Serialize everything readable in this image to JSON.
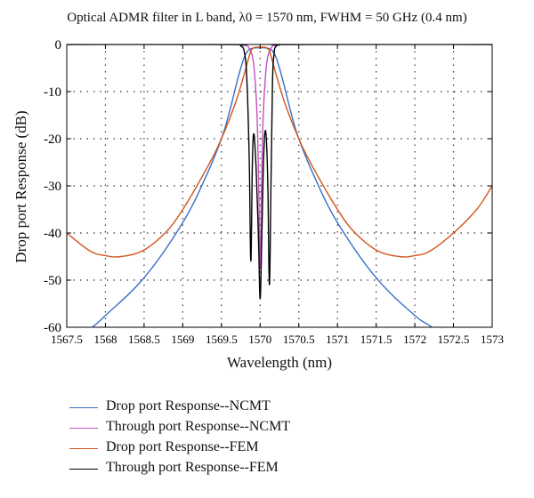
{
  "chart_data": {
    "type": "line",
    "title": "Optical ADMR filter in L band, λ0 = 1570 nm, FWHM = 50 GHz (0.4 nm)",
    "xlabel": "Wavelength (nm)",
    "ylabel": "Drop port Response (dB)",
    "xlim": [
      1567.5,
      1573
    ],
    "ylim": [
      -60,
      0
    ],
    "xticks": [
      "1567.5",
      "1568",
      "1568.5",
      "1569",
      "1569.5",
      "1570",
      "1570.5",
      "1571",
      "1571.5",
      "1572",
      "1572.5",
      "1573"
    ],
    "yticks": [
      "0",
      "-10",
      "-20",
      "-30",
      "-40",
      "-50",
      "-60"
    ],
    "grid": true,
    "legend_position": "below plot",
    "series": [
      {
        "name": "Drop port Response--NCMT",
        "color": "#3a6fc9",
        "x": [
          1567.5,
          1567.83,
          1568.0,
          1568.5,
          1569.0,
          1569.3,
          1569.5,
          1569.6,
          1569.7,
          1569.75,
          1569.8,
          1569.85,
          1569.9,
          1569.95,
          1570.0,
          1570.05,
          1570.1,
          1570.15,
          1570.2,
          1570.25,
          1570.3,
          1570.4,
          1570.5,
          1570.7,
          1571.0,
          1571.5,
          1572.0,
          1572.22,
          1572.5,
          1573.0
        ],
        "y": [
          -64,
          -60,
          -57.5,
          -49.5,
          -37.8,
          -28.0,
          -20.0,
          -14.5,
          -8.0,
          -5.0,
          -2.5,
          -1.2,
          -0.8,
          -0.7,
          -0.7,
          -0.7,
          -0.8,
          -1.2,
          -2.5,
          -5.0,
          -8.0,
          -14.5,
          -20.0,
          -28.0,
          -37.8,
          -49.5,
          -57.5,
          -60,
          -64,
          -70
        ]
      },
      {
        "name": "Through port Response--NCMT",
        "color": "#c64fc0",
        "x": [
          1567.5,
          1569.5,
          1569.8,
          1569.85,
          1569.9,
          1569.93,
          1569.96,
          1569.98,
          1570.0,
          1570.02,
          1570.04,
          1570.07,
          1570.1,
          1570.15,
          1570.2,
          1570.5,
          1573.0
        ],
        "y": [
          0,
          0,
          -0.2,
          -0.6,
          -2.5,
          -6.5,
          -15.0,
          -28.0,
          -47.5,
          -28.0,
          -15.0,
          -6.5,
          -2.5,
          -0.6,
          -0.2,
          0,
          0
        ]
      },
      {
        "name": "Drop port Response--FEM",
        "color": "#d2561e",
        "x": [
          1567.5,
          1567.8,
          1568.0,
          1568.2,
          1568.5,
          1568.8,
          1569.0,
          1569.2,
          1569.4,
          1569.5,
          1569.6,
          1569.7,
          1569.8,
          1569.85,
          1569.9,
          1570.0,
          1570.1,
          1570.15,
          1570.2,
          1570.3,
          1570.4,
          1570.5,
          1570.6,
          1570.8,
          1571.0,
          1571.2,
          1571.5,
          1571.8,
          1572.0,
          1572.2,
          1572.5,
          1572.8,
          1573.0
        ],
        "y": [
          -40,
          -43.8,
          -44.8,
          -45.0,
          -43.6,
          -39.5,
          -35.0,
          -29.5,
          -23.5,
          -20.0,
          -16.0,
          -11.5,
          -6.0,
          -3.0,
          -0.9,
          -0.6,
          -0.9,
          -3.0,
          -6.0,
          -11.5,
          -16.0,
          -20.0,
          -23.5,
          -29.5,
          -35.0,
          -39.5,
          -43.6,
          -45.0,
          -44.8,
          -43.8,
          -40.0,
          -35.0,
          -30.0
        ]
      },
      {
        "name": "Through port Response--FEM",
        "color": "#000000",
        "x": [
          1567.5,
          1569.6,
          1569.75,
          1569.8,
          1569.83,
          1569.86,
          1569.88,
          1569.9,
          1569.92,
          1569.95,
          1569.98,
          1570.0,
          1570.02,
          1570.04,
          1570.06,
          1570.08,
          1570.1,
          1570.12,
          1570.14,
          1570.16,
          1570.18,
          1570.2,
          1570.25,
          1570.4,
          1573.0
        ],
        "y": [
          0,
          0,
          -0.3,
          -2.0,
          -8.0,
          -25.0,
          -46.0,
          -25.0,
          -19.0,
          -27.0,
          -42.0,
          -54.0,
          -42.0,
          -27.0,
          -19.0,
          -20.0,
          -30.0,
          -51.0,
          -30.0,
          -8.0,
          -2.0,
          -0.5,
          -0.1,
          0,
          0
        ]
      }
    ]
  }
}
